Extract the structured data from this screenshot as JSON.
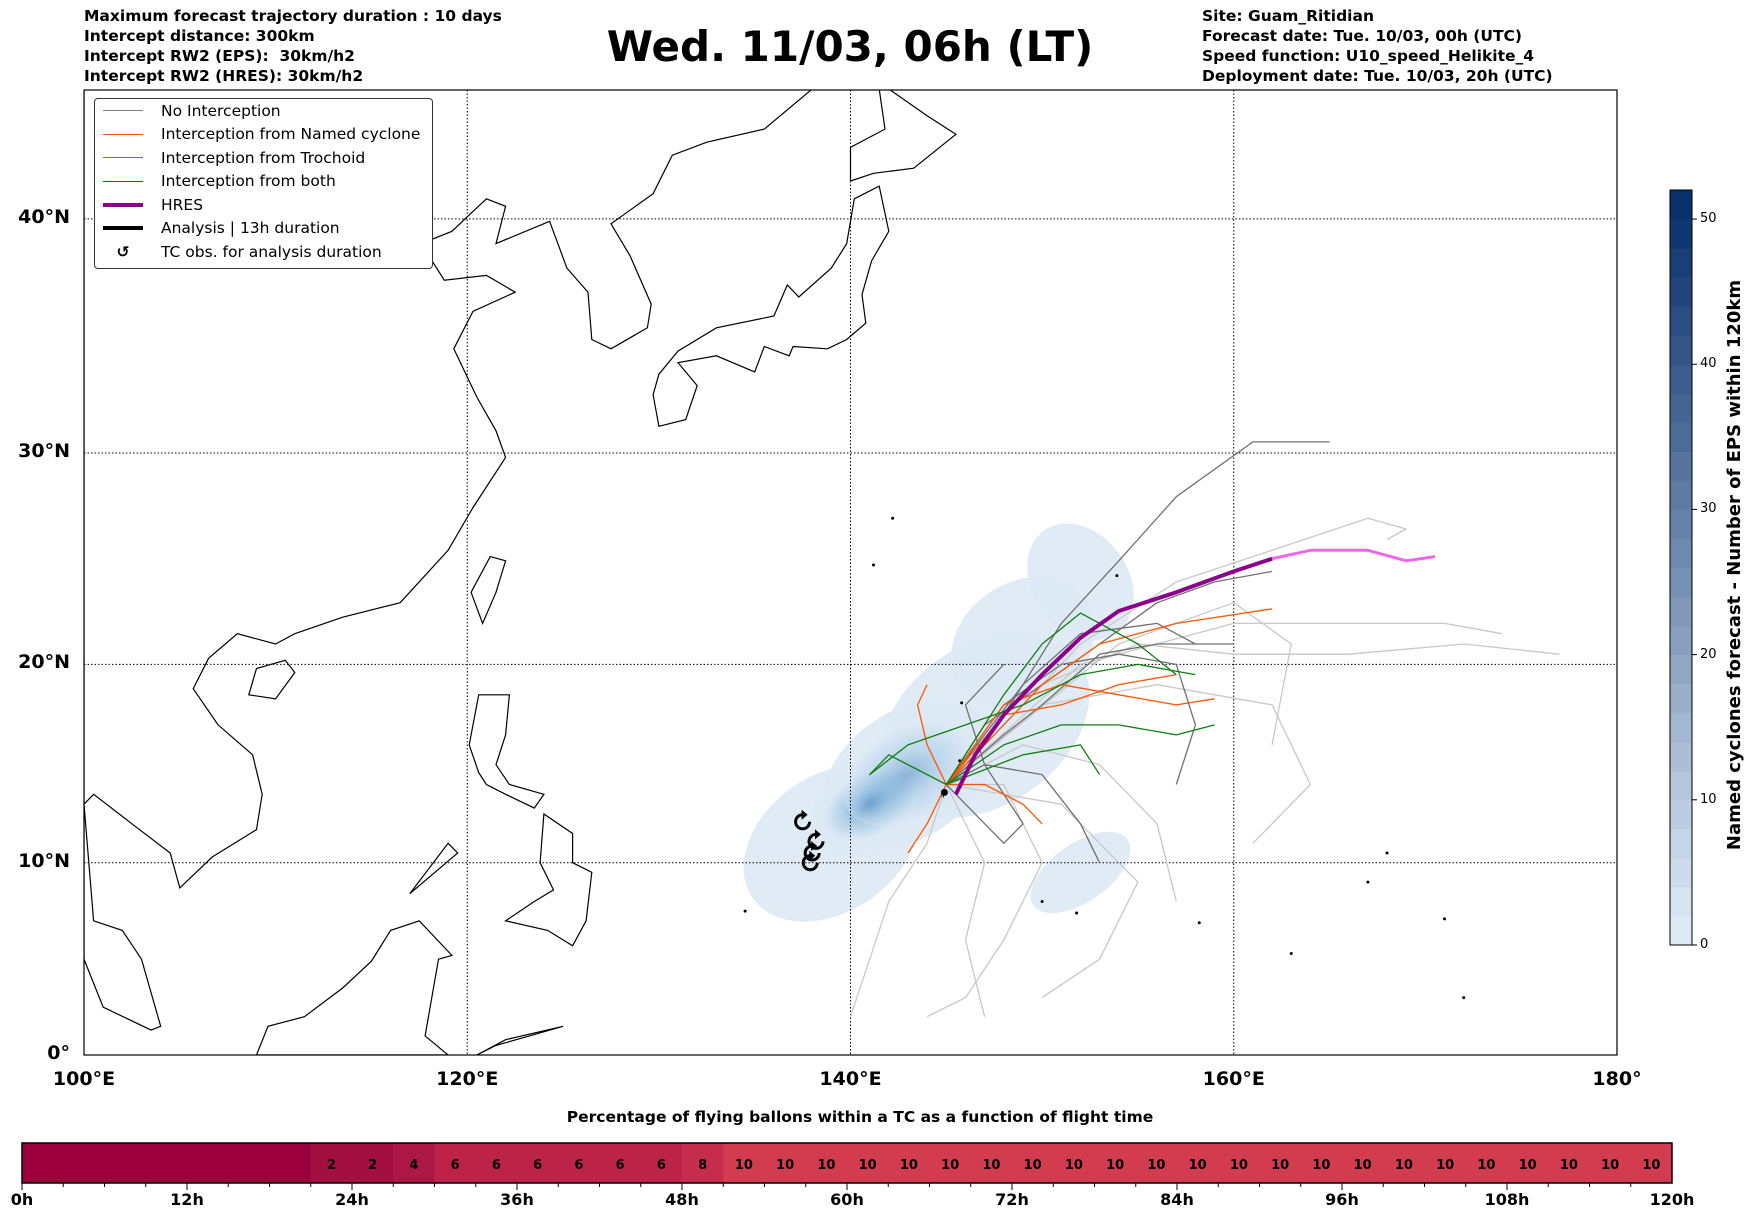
{
  "header": {
    "left": [
      "Maximum forecast trajectory duration : 10 days",
      "Intercept distance: 300km",
      "Intercept RW2 (EPS):  30km/h2",
      "Intercept RW2 (HRES): 30km/h2"
    ],
    "title": "Wed. 11/03, 06h (LT)",
    "right": [
      "Site: Guam_Ritidian",
      "Forecast date: Tue. 10/03, 00h (UTC)",
      "Speed function: U10_speed_Helikite_4",
      "Deployment date: Tue. 10/03, 20h (UTC)"
    ]
  },
  "legend": [
    {
      "label": "No Interception",
      "color": "#808080",
      "w": 1
    },
    {
      "label": "Interception from Named cyclone",
      "color": "#ff5500",
      "w": 1
    },
    {
      "label": "Interception from Trochoid",
      "color": "#808000",
      "w": 1
    },
    {
      "label": "Interception from both",
      "color": "#008000",
      "w": 1
    },
    {
      "label": "HRES",
      "color": "#8b008b",
      "w": 4
    },
    {
      "label": "Analysis | 13h duration",
      "color": "#000000",
      "w": 4
    },
    {
      "label": "TC obs. for analysis duration",
      "symbol": "↺"
    }
  ],
  "map": {
    "lon_ticks": [
      "100°E",
      "120°E",
      "140°E",
      "160°E",
      "180°"
    ],
    "lat_ticks": [
      "0°",
      "10°N",
      "20°N",
      "30°N",
      "40°N"
    ]
  },
  "colorbar": {
    "label": "Named cyclones forecast - Number of EPS within 120km",
    "ticks": [
      "0",
      "10",
      "20",
      "30",
      "40",
      "50"
    ],
    "max": 52
  },
  "chart_data": {
    "type": "map",
    "extent": {
      "lon": [
        100,
        180
      ],
      "lat": [
        0,
        45
      ]
    },
    "site": {
      "name": "Guam_Ritidian",
      "lon": 144.9,
      "lat": 13.6
    },
    "hres_track": [
      [
        145.5,
        13.5
      ],
      [
        146.5,
        15.5
      ],
      [
        148,
        17.5
      ],
      [
        150,
        19.5
      ],
      [
        152,
        21.3
      ],
      [
        154,
        22.6
      ],
      [
        157,
        23.5
      ],
      [
        160,
        24.5
      ],
      [
        162,
        25.1
      ],
      [
        164,
        25.5
      ],
      [
        167,
        25.5
      ],
      [
        169,
        25
      ],
      [
        170.5,
        25.2
      ]
    ],
    "tc_obs": [
      [
        137.5,
        12.1
      ],
      [
        138.2,
        11.1
      ],
      [
        138,
        10.5
      ],
      [
        137.9,
        10
      ]
    ],
    "tracks": [
      {
        "cat": "none",
        "pts": [
          [
            145,
            14
          ],
          [
            147,
            16
          ],
          [
            149,
            19
          ],
          [
            151,
            22
          ],
          [
            154,
            25
          ],
          [
            157,
            28
          ],
          [
            161,
            30.5
          ],
          [
            165,
            30.5
          ]
        ]
      },
      {
        "cat": "none",
        "pts": [
          [
            145,
            14
          ],
          [
            148,
            16.5
          ],
          [
            150,
            18
          ],
          [
            153,
            20.5
          ],
          [
            156,
            21
          ],
          [
            160,
            21
          ]
        ]
      },
      {
        "cat": "none",
        "pts": [
          [
            145,
            14
          ],
          [
            147,
            17
          ],
          [
            150,
            19
          ],
          [
            153,
            21
          ],
          [
            156,
            23
          ],
          [
            159,
            24
          ],
          [
            162,
            24.5
          ]
        ]
      },
      {
        "cat": "none",
        "pts": [
          [
            145,
            14
          ],
          [
            147,
            15
          ],
          [
            150,
            14.5
          ],
          [
            152,
            12
          ],
          [
            153,
            10
          ]
        ]
      },
      {
        "cat": "none",
        "pts": [
          [
            145,
            14
          ],
          [
            146,
            13
          ],
          [
            148,
            11
          ],
          [
            149,
            12
          ],
          [
            147,
            15
          ],
          [
            146,
            18
          ],
          [
            148,
            20
          ]
        ]
      },
      {
        "cat": "none",
        "pts": [
          [
            145,
            14
          ],
          [
            148,
            18
          ],
          [
            151,
            20
          ],
          [
            154,
            20.5
          ],
          [
            157,
            20
          ],
          [
            158,
            17
          ],
          [
            157,
            14
          ]
        ]
      },
      {
        "cat": "none",
        "pts": [
          [
            145,
            14
          ],
          [
            149,
            19
          ],
          [
            152,
            21.5
          ],
          [
            156,
            22
          ],
          [
            158,
            21
          ]
        ]
      },
      {
        "cat": "light",
        "pts": [
          [
            145,
            14
          ],
          [
            148,
            17
          ],
          [
            152,
            21
          ],
          [
            157,
            24
          ],
          [
            162,
            25.5
          ],
          [
            167,
            27
          ],
          [
            169,
            26.5
          ],
          [
            168,
            26
          ]
        ]
      },
      {
        "cat": "light",
        "pts": [
          [
            145,
            14
          ],
          [
            150,
            19
          ],
          [
            155,
            21
          ],
          [
            160,
            20.5
          ],
          [
            166,
            20.5
          ],
          [
            172,
            21
          ],
          [
            177,
            20.5
          ]
        ]
      },
      {
        "cat": "light",
        "pts": [
          [
            145,
            14
          ],
          [
            148,
            14
          ],
          [
            150,
            10
          ],
          [
            148,
            6
          ],
          [
            146,
            3
          ],
          [
            144,
            2
          ]
        ]
      },
      {
        "cat": "light",
        "pts": [
          [
            145,
            14
          ],
          [
            144,
            11
          ],
          [
            142,
            8
          ],
          [
            141,
            5
          ],
          [
            140,
            2
          ]
        ]
      },
      {
        "cat": "light",
        "pts": [
          [
            145,
            14
          ],
          [
            149,
            16
          ],
          [
            153,
            15
          ],
          [
            156,
            12
          ],
          [
            157,
            8
          ]
        ]
      },
      {
        "cat": "light",
        "pts": [
          [
            145,
            14
          ],
          [
            150,
            18
          ],
          [
            156,
            19
          ],
          [
            162,
            18
          ],
          [
            164,
            14
          ],
          [
            161,
            11
          ]
        ]
      },
      {
        "cat": "light",
        "pts": [
          [
            145,
            14
          ],
          [
            152,
            20
          ],
          [
            160,
            22
          ],
          [
            166,
            22
          ],
          [
            171,
            22
          ],
          [
            174,
            21.5
          ]
        ]
      },
      {
        "cat": "light",
        "pts": [
          [
            145,
            14
          ],
          [
            147,
            10
          ],
          [
            146,
            6
          ],
          [
            147,
            2
          ]
        ]
      },
      {
        "cat": "light",
        "pts": [
          [
            145,
            14
          ],
          [
            151,
            13
          ],
          [
            155,
            9
          ],
          [
            153,
            5
          ],
          [
            150,
            3
          ]
        ]
      },
      {
        "cat": "light",
        "pts": [
          [
            145,
            14
          ],
          [
            154,
            21
          ],
          [
            160,
            23
          ],
          [
            163,
            21
          ],
          [
            162,
            16
          ]
        ]
      },
      {
        "cat": "named",
        "pts": [
          [
            145,
            14
          ],
          [
            148,
            18
          ],
          [
            151,
            19
          ],
          [
            154,
            18.5
          ],
          [
            157,
            18
          ],
          [
            159,
            18.3
          ]
        ]
      },
      {
        "cat": "named",
        "pts": [
          [
            145,
            14
          ],
          [
            147,
            16
          ],
          [
            150,
            19
          ],
          [
            153,
            21
          ],
          [
            157,
            22
          ],
          [
            162,
            22.7
          ]
        ]
      },
      {
        "cat": "named",
        "pts": [
          [
            145,
            14
          ],
          [
            144,
            12
          ],
          [
            143,
            10.5
          ]
        ]
      },
      {
        "cat": "named",
        "pts": [
          [
            145,
            14
          ],
          [
            144,
            16
          ],
          [
            143.5,
            18
          ],
          [
            144,
            19
          ]
        ]
      },
      {
        "cat": "named",
        "pts": [
          [
            145,
            14
          ],
          [
            147,
            14
          ],
          [
            149,
            13
          ],
          [
            150,
            12
          ]
        ]
      },
      {
        "cat": "named",
        "pts": [
          [
            145,
            14
          ],
          [
            148,
            17.5
          ],
          [
            151,
            18
          ],
          [
            154,
            19
          ],
          [
            157,
            19.5
          ]
        ]
      },
      {
        "cat": "both",
        "pts": [
          [
            145,
            14
          ],
          [
            148,
            16
          ],
          [
            151,
            17
          ],
          [
            154,
            17
          ],
          [
            157,
            16.5
          ],
          [
            159,
            17
          ]
        ]
      },
      {
        "cat": "both",
        "pts": [
          [
            145,
            14
          ],
          [
            142,
            15.5
          ],
          [
            141,
            14.5
          ],
          [
            143,
            16
          ],
          [
            146,
            17
          ],
          [
            149,
            18
          ],
          [
            152,
            19.5
          ],
          [
            155,
            20
          ],
          [
            158,
            19.5
          ]
        ]
      },
      {
        "cat": "both",
        "pts": [
          [
            145,
            14
          ],
          [
            148,
            18.5
          ],
          [
            150,
            21
          ],
          [
            152,
            22.5
          ],
          [
            155,
            21
          ],
          [
            157,
            19.5
          ]
        ]
      },
      {
        "cat": "both",
        "pts": [
          [
            145,
            14
          ],
          [
            149,
            15.5
          ],
          [
            152,
            16
          ],
          [
            153,
            14.5
          ]
        ]
      }
    ],
    "density": [
      [
        141,
        13,
        3.5,
        2.2,
        0.8
      ],
      [
        143,
        14.5,
        5,
        3.2,
        0.45
      ],
      [
        147,
        17,
        6,
        4,
        0.3
      ],
      [
        149,
        21,
        4,
        3,
        0.2
      ],
      [
        152,
        24,
        2.5,
        3,
        0.18
      ],
      [
        139,
        11,
        5,
        3.5,
        0.25
      ],
      [
        152,
        9.5,
        3,
        1.5,
        0.15
      ]
    ]
  },
  "flight_bar": {
    "title": "Percentage of flying ballons within a TC as a function of flight time",
    "x_labels": [
      "0h",
      "12h",
      "24h",
      "36h",
      "48h",
      "60h",
      "72h",
      "84h",
      "96h",
      "108h",
      "120h"
    ],
    "values": [
      0,
      0,
      0,
      0,
      0,
      0,
      0,
      2,
      2,
      4,
      6,
      6,
      6,
      6,
      6,
      6,
      8,
      10,
      10,
      10,
      10,
      10,
      10,
      10,
      10,
      10,
      10,
      10,
      10,
      10,
      10,
      10,
      10,
      10,
      10,
      10,
      10,
      10,
      10,
      10
    ]
  }
}
